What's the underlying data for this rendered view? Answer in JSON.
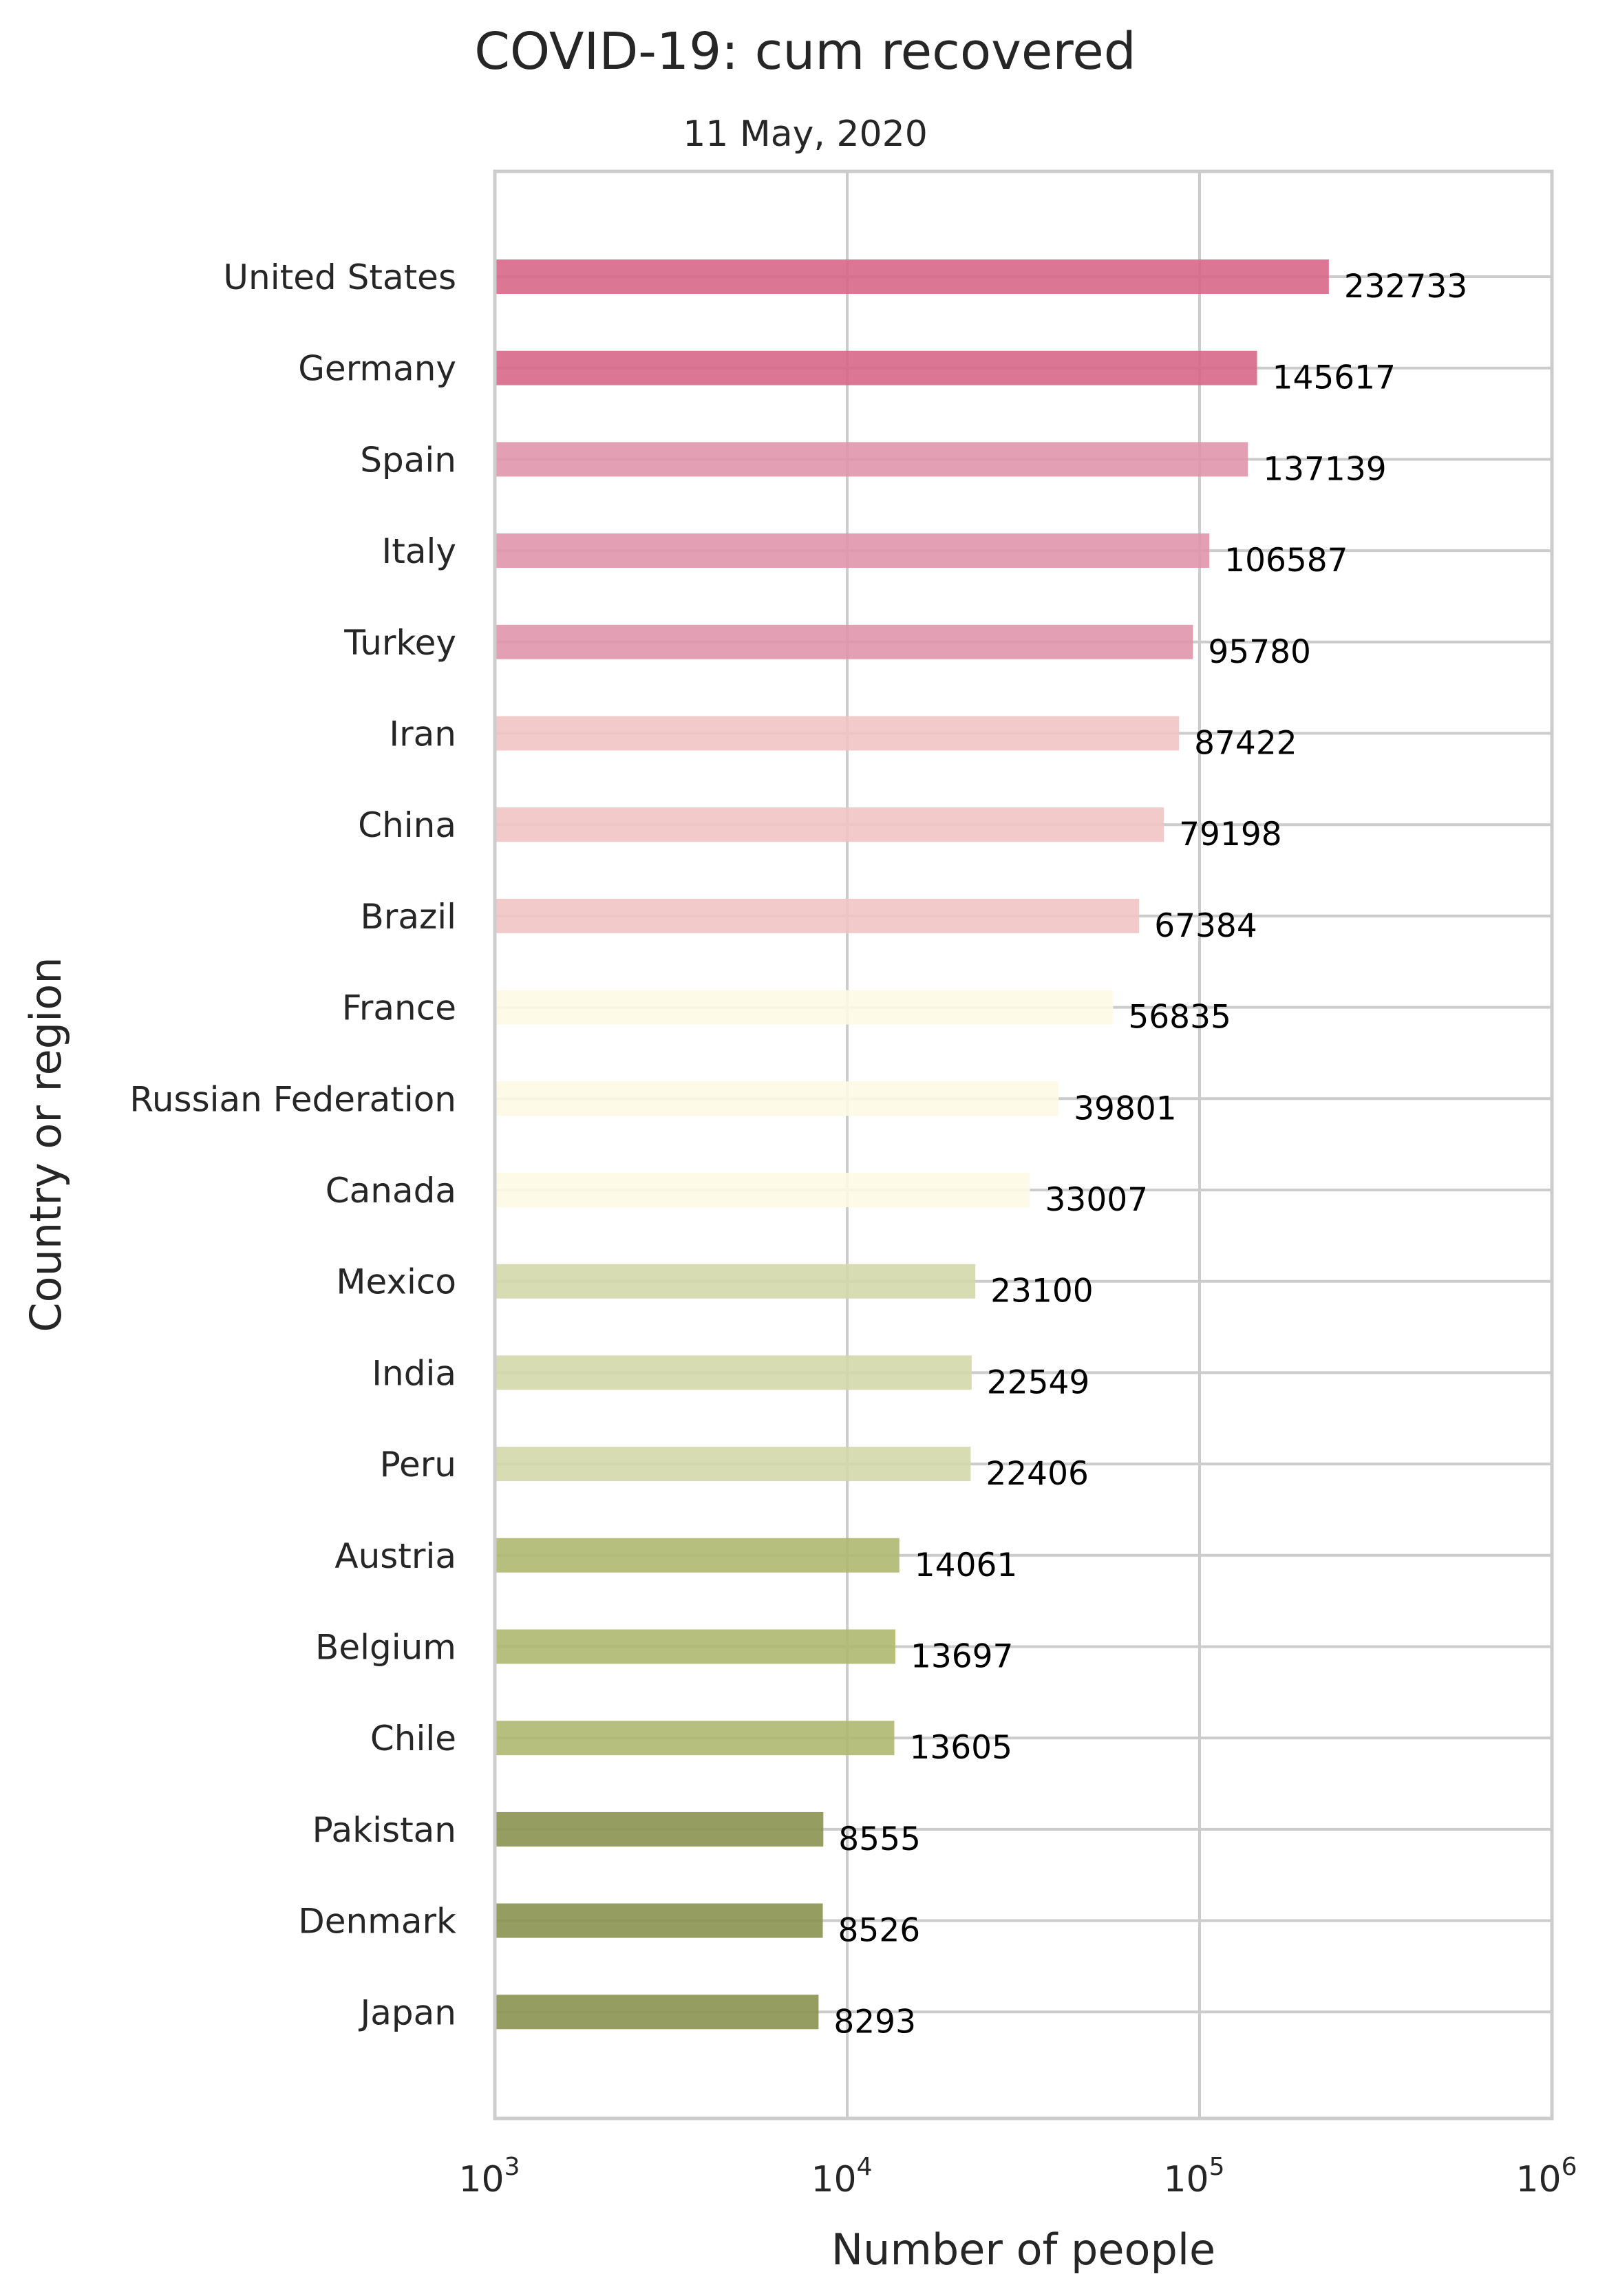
{
  "chart_data": {
    "type": "bar",
    "orientation": "horizontal",
    "title": "COVID-19:  cum recovered",
    "subtitle": "11 May, 2020",
    "xlabel": "Number of people",
    "ylabel": "Country or region",
    "xscale": "log",
    "xlim": [
      1000,
      1000000
    ],
    "xticks": [
      {
        "base": "10",
        "exp": "3",
        "value": 1000
      },
      {
        "base": "10",
        "exp": "4",
        "value": 10000
      },
      {
        "base": "10",
        "exp": "5",
        "value": 100000
      },
      {
        "base": "10",
        "exp": "6",
        "value": 1000000
      }
    ],
    "grid": true,
    "categories": [
      "United States",
      "Germany",
      "Spain",
      "Italy",
      "Turkey",
      "Iran",
      "China",
      "Brazil",
      "France",
      "Russian Federation",
      "Canada",
      "Mexico",
      "India",
      "Peru",
      "Austria",
      "Belgium",
      "Chile",
      "Pakistan",
      "Denmark",
      "Japan"
    ],
    "values": [
      232733,
      145617,
      137139,
      106587,
      95780,
      87422,
      79198,
      67384,
      56835,
      39801,
      33007,
      23100,
      22549,
      22406,
      14061,
      13697,
      13605,
      8555,
      8526,
      8293
    ],
    "value_labels": [
      "232733",
      "145617",
      "137139",
      "106587",
      "95780",
      "87422",
      "79198",
      "67384",
      "56835",
      "39801",
      "33007",
      "23100",
      "22549",
      "22406",
      "14061",
      "13697",
      "13605",
      "8555",
      "8526",
      "8293"
    ],
    "bar_colors": [
      "#d7688a",
      "#d7688a",
      "#e095ab",
      "#e095ab",
      "#e095ab",
      "#f1c4c4",
      "#f1c4c4",
      "#f1c4c4",
      "#fdfbe6",
      "#fdfbe6",
      "#fdfbe6",
      "#d3d8aa",
      "#d3d8aa",
      "#d3d8aa",
      "#aeb870",
      "#aeb870",
      "#aeb870",
      "#8a944f",
      "#8a944f",
      "#8a944f"
    ]
  }
}
